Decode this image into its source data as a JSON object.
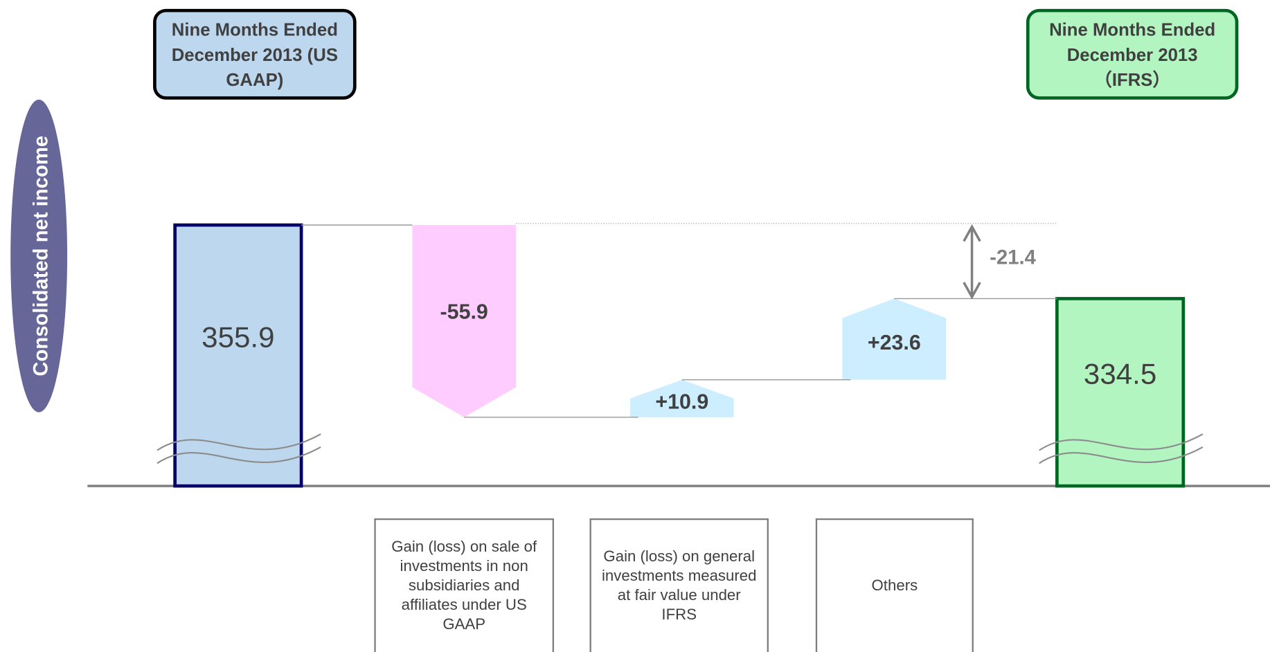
{
  "chart_data": {
    "type": "waterfall",
    "ylabel": "Consolidated net income",
    "categories": [
      "Nine Months Ended December 2013 (US GAAP)",
      "Gain (loss) on sale of investments in non subsidiaries and affiliates under US GAAP",
      "Gain (loss) on general investments measured at fair value under IFRS",
      "Others",
      "Nine Months Ended December 2013（IFRS）"
    ],
    "values": [
      355.9,
      -55.9,
      10.9,
      23.6,
      334.5
    ],
    "value_labels": [
      "355.9",
      "-55.9",
      "+10.9",
      "+23.6",
      "334.5"
    ],
    "difference": -21.4,
    "colors": [
      "#bdd7ee",
      "#ffccff",
      "#cceeff",
      "#cceeff",
      "#b3f5c0"
    ],
    "ylim": [
      280,
      370
    ]
  }
}
